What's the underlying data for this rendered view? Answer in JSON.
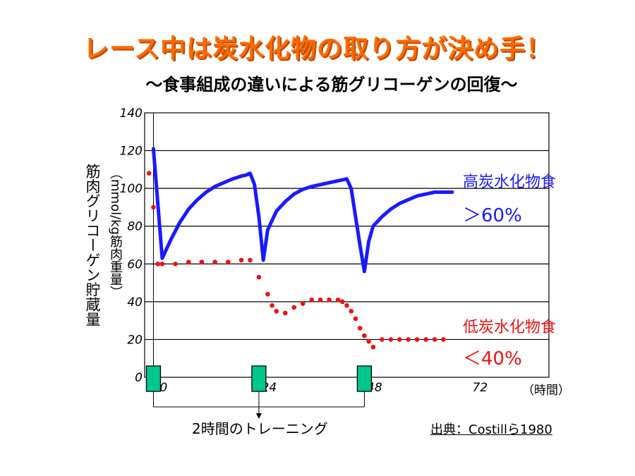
{
  "title": "レース中は炭水化物の取り方が決め手！",
  "subtitle": "～食事組成の違いによる筋グリコーゲンの回復～",
  "y_axis": {
    "label": "筋肉グリコーゲン貯蔵量",
    "unit": "（mmol/kg筋肉重量）"
  },
  "x_axis": {
    "unit": "（時間）"
  },
  "legend": {
    "high": {
      "name": "高炭水化物食",
      "ratio": "＞60%",
      "color": "#1a1aff"
    },
    "low": {
      "name": "低炭水化物食",
      "ratio": "＜40%",
      "color": "#ee1111"
    }
  },
  "training_note": "2時間のトレーニング",
  "source": "出典：Costillら1980",
  "chart_data": {
    "type": "line",
    "title": "",
    "xlabel": "（時間）",
    "ylabel": "筋肉グリコーゲン貯蔵量（mmol/kg筋肉重量）",
    "ylim": [
      0,
      140
    ],
    "xlim": [
      -4,
      88
    ],
    "grid": true,
    "y_ticks": [
      0,
      20,
      40,
      60,
      80,
      100,
      120,
      140
    ],
    "x_ticks": [
      0,
      24,
      48,
      72
    ],
    "x_tick_labels": [
      "0",
      "24",
      "48",
      "72"
    ],
    "training_sessions": [
      -2,
      22,
      46
    ],
    "series": [
      {
        "name": "高炭水化物食",
        "style": "solid",
        "color": "#1a1aff",
        "x": [
          -2,
          0,
          2,
          4,
          6,
          8,
          10,
          12,
          14,
          16,
          18,
          19,
          20,
          21,
          22,
          23,
          24,
          26,
          28,
          30,
          32,
          34,
          36,
          38,
          40,
          41,
          42,
          43,
          44,
          45,
          46,
          47,
          48,
          50,
          52,
          54,
          56,
          58,
          60,
          62,
          64,
          66
        ],
        "y": [
          121,
          63,
          73,
          82,
          89,
          94,
          98,
          101,
          103,
          105,
          106.5,
          107,
          108,
          102,
          85,
          62,
          78,
          88,
          93,
          97,
          99.5,
          101,
          102,
          103,
          104,
          104.5,
          105,
          100,
          85,
          70,
          56,
          72,
          80,
          85,
          89,
          92,
          94,
          96,
          97,
          98,
          98,
          98
        ]
      },
      {
        "name": "低炭水化物食",
        "style": "dotted",
        "color": "#ee1111",
        "x": [
          -3,
          -2,
          -1,
          0,
          3,
          6,
          9,
          12,
          15,
          18,
          20,
          22,
          24,
          25,
          26,
          28,
          30,
          32,
          34,
          36,
          38,
          40,
          41,
          42,
          43,
          44,
          45,
          46,
          47,
          48,
          50,
          52,
          54,
          56,
          58,
          60,
          62,
          64
        ],
        "y": [
          108,
          90,
          60,
          60,
          60,
          61,
          61,
          61,
          61,
          62,
          62,
          53,
          44,
          38,
          35,
          34,
          37,
          39,
          41,
          41,
          41,
          41,
          40,
          38,
          35,
          31,
          26,
          22,
          19,
          16,
          20,
          20,
          20,
          20,
          20,
          20,
          20,
          20
        ]
      }
    ]
  }
}
